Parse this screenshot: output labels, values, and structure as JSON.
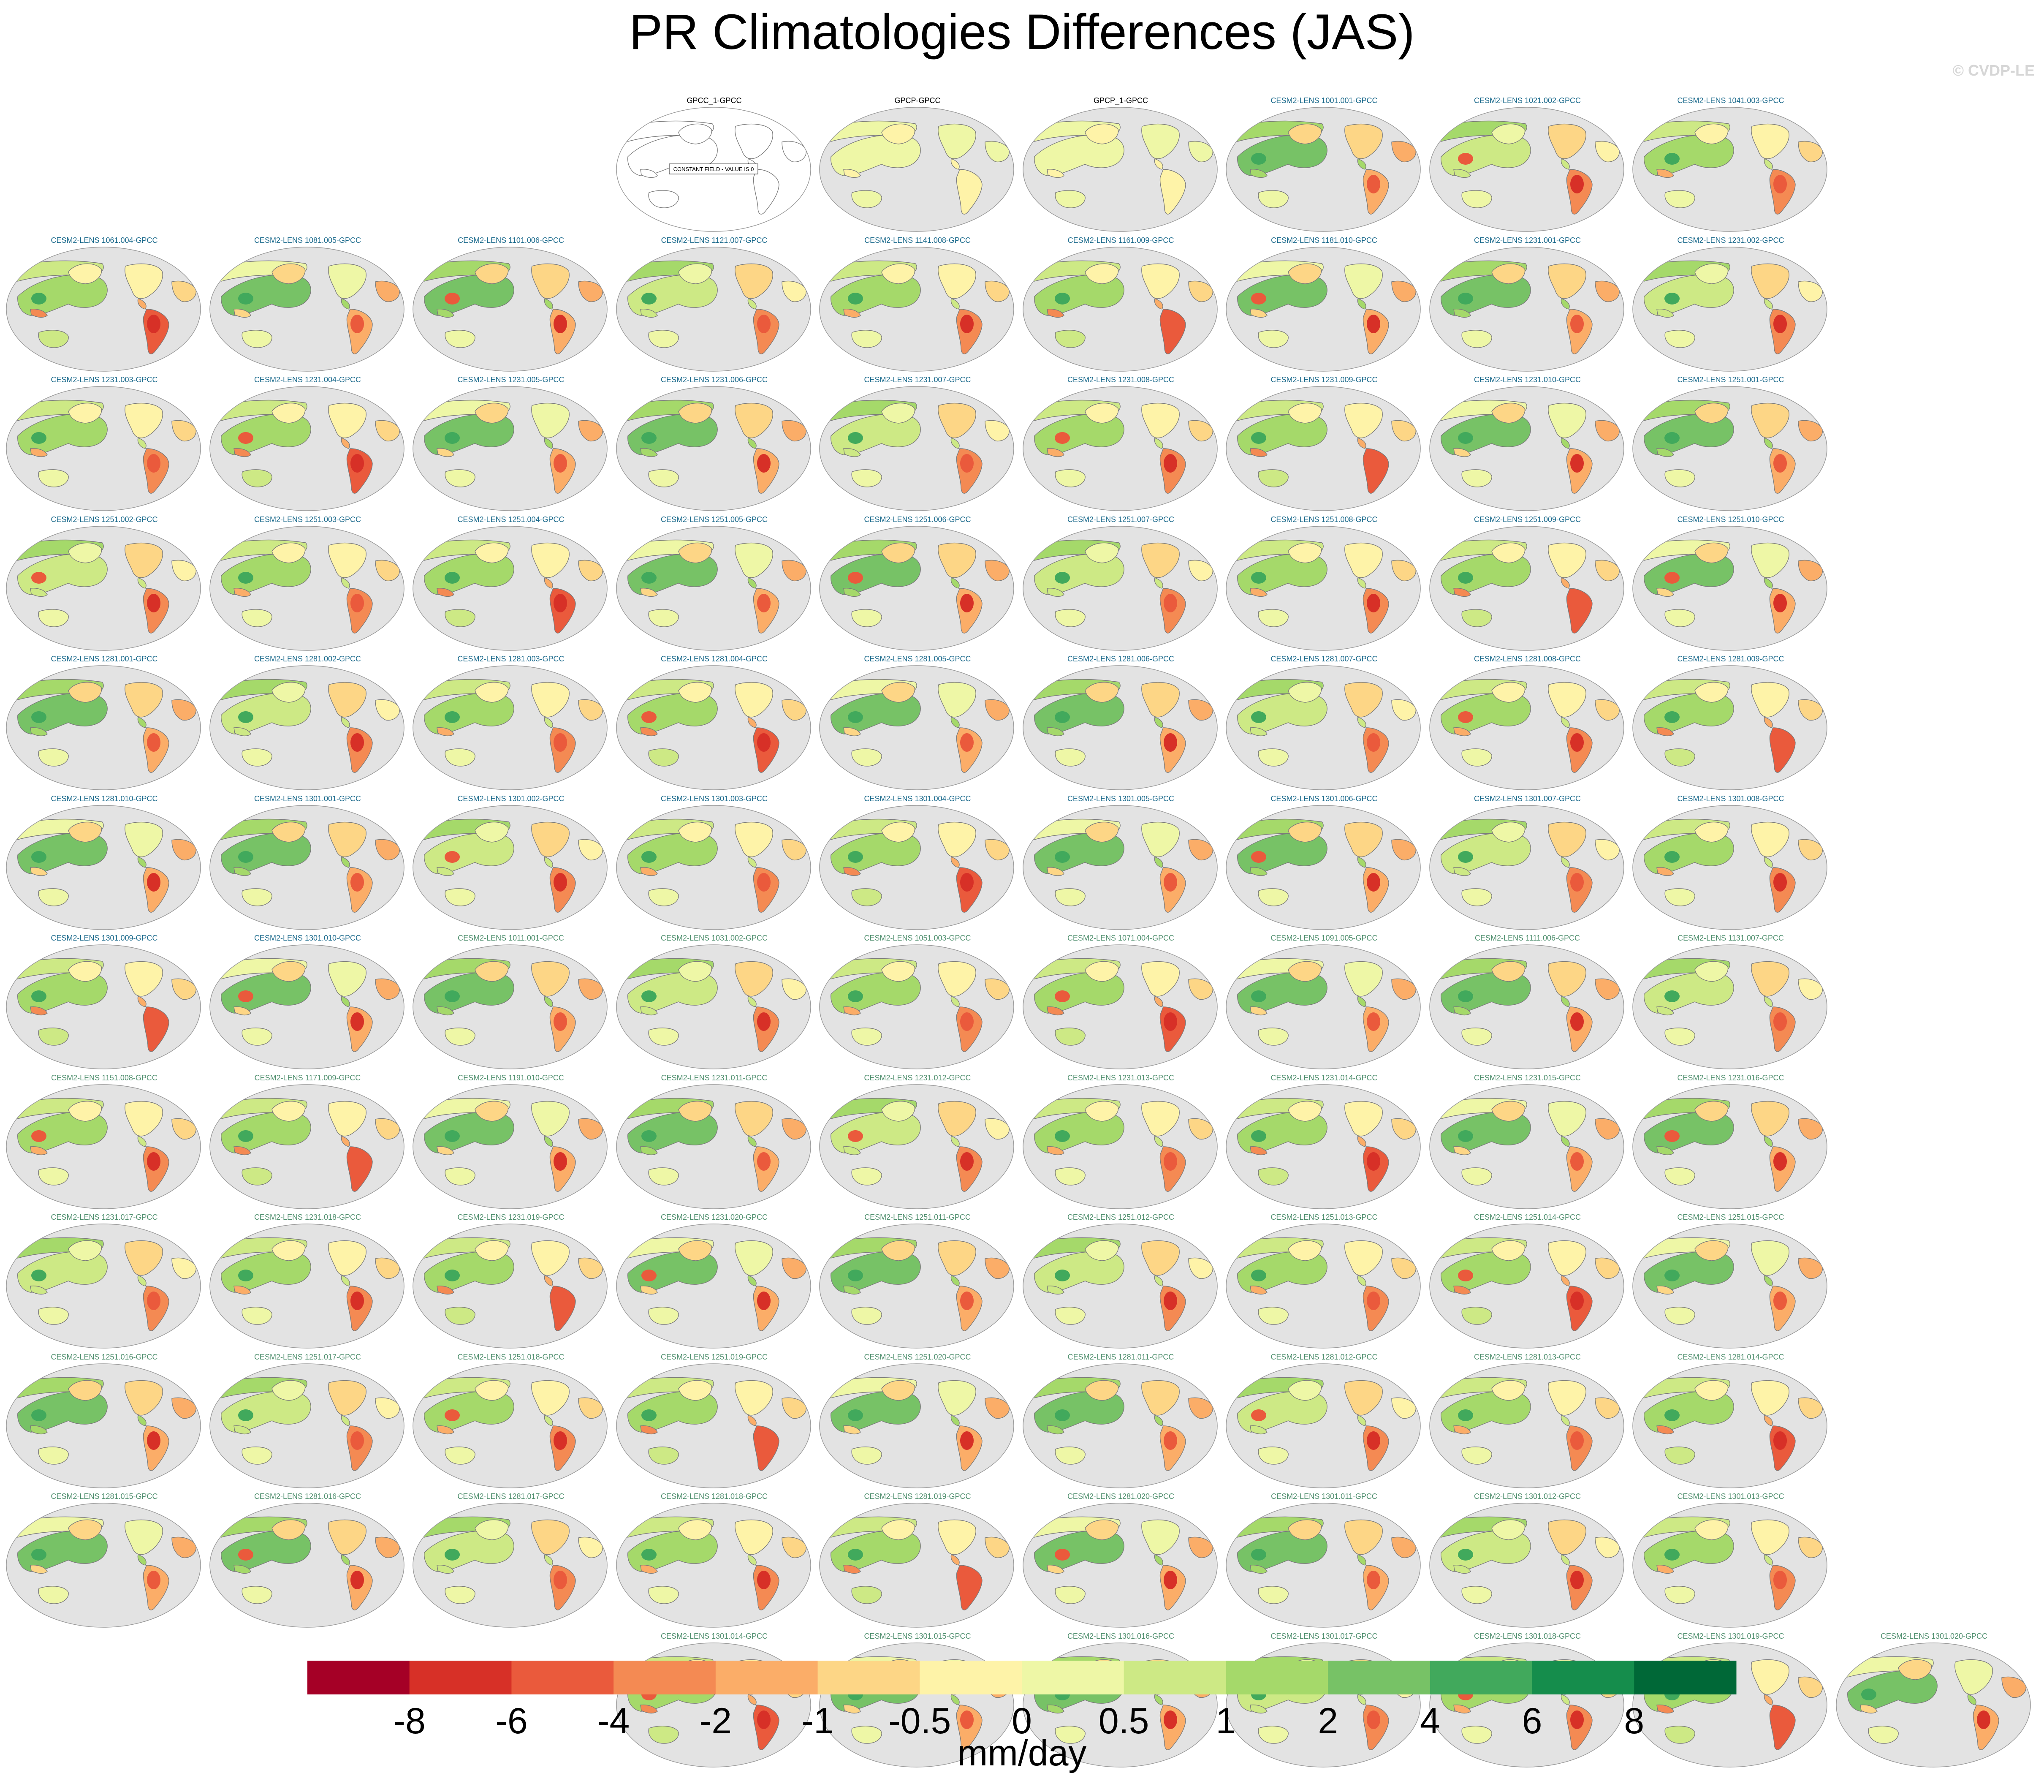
{
  "title": "PR Climatologies Differences (JAS)",
  "credit": "© CVDP-LE",
  "colors": {
    "title_obs": "#000000",
    "title_cesm_a": "#1b6a8c",
    "title_cesm_b": "#4f8f6e",
    "ocean": "#e3e3e3",
    "coast": "#7a7a7a"
  },
  "chart_data": {
    "type": "heatmap",
    "description_units": "mm/day",
    "colorbar": {
      "units": "mm/day",
      "tick_labels": [
        "-8",
        "-6",
        "-4",
        "-2",
        "-1",
        "-0.5",
        "0",
        "0.5",
        "1",
        "2",
        "4",
        "6",
        "8"
      ],
      "levels": [
        -8,
        -6,
        -4,
        -2,
        -1,
        -0.5,
        0,
        0.5,
        1,
        2,
        4,
        6,
        8
      ],
      "colors": [
        "#a50026",
        "#d73027",
        "#ea5a3c",
        "#f48a53",
        "#fbad68",
        "#fdd686",
        "#fef3a8",
        "#eef7a6",
        "#cde985",
        "#a5d96a",
        "#77c266",
        "#41a95c",
        "#158d4c",
        "#006837"
      ]
    },
    "panels": [
      {
        "label": "GPCC_1-GPCC",
        "group": "obs",
        "kind": "constant",
        "annotation": "CONSTANT FIELD - VALUE IS 0"
      },
      {
        "label": "GPCP-GPCC",
        "group": "obs",
        "kind": "obs"
      },
      {
        "label": "GPCP_1-GPCC",
        "group": "obs",
        "kind": "obs"
      },
      {
        "label": "CESM2-LENS 1001.001-GPCC",
        "group": "a"
      },
      {
        "label": "CESM2-LENS 1021.002-GPCC",
        "group": "a"
      },
      {
        "label": "CESM2-LENS 1041.003-GPCC",
        "group": "a"
      },
      {
        "label": "CESM2-LENS 1061.004-GPCC",
        "group": "a"
      },
      {
        "label": "CESM2-LENS 1081.005-GPCC",
        "group": "a"
      },
      {
        "label": "CESM2-LENS 1101.006-GPCC",
        "group": "a"
      },
      {
        "label": "CESM2-LENS 1121.007-GPCC",
        "group": "a"
      },
      {
        "label": "CESM2-LENS 1141.008-GPCC",
        "group": "a"
      },
      {
        "label": "CESM2-LENS 1161.009-GPCC",
        "group": "a"
      },
      {
        "label": "CESM2-LENS 1181.010-GPCC",
        "group": "a"
      },
      {
        "label": "CESM2-LENS 1231.001-GPCC",
        "group": "a"
      },
      {
        "label": "CESM2-LENS 1231.002-GPCC",
        "group": "a"
      },
      {
        "label": "CESM2-LENS 1231.003-GPCC",
        "group": "a"
      },
      {
        "label": "CESM2-LENS 1231.004-GPCC",
        "group": "a"
      },
      {
        "label": "CESM2-LENS 1231.005-GPCC",
        "group": "a"
      },
      {
        "label": "CESM2-LENS 1231.006-GPCC",
        "group": "a"
      },
      {
        "label": "CESM2-LENS 1231.007-GPCC",
        "group": "a"
      },
      {
        "label": "CESM2-LENS 1231.008-GPCC",
        "group": "a"
      },
      {
        "label": "CESM2-LENS 1231.009-GPCC",
        "group": "a"
      },
      {
        "label": "CESM2-LENS 1231.010-GPCC",
        "group": "a"
      },
      {
        "label": "CESM2-LENS 1251.001-GPCC",
        "group": "a"
      },
      {
        "label": "CESM2-LENS 1251.002-GPCC",
        "group": "a"
      },
      {
        "label": "CESM2-LENS 1251.003-GPCC",
        "group": "a"
      },
      {
        "label": "CESM2-LENS 1251.004-GPCC",
        "group": "a"
      },
      {
        "label": "CESM2-LENS 1251.005-GPCC",
        "group": "a"
      },
      {
        "label": "CESM2-LENS 1251.006-GPCC",
        "group": "a"
      },
      {
        "label": "CESM2-LENS 1251.007-GPCC",
        "group": "a"
      },
      {
        "label": "CESM2-LENS 1251.008-GPCC",
        "group": "a"
      },
      {
        "label": "CESM2-LENS 1251.009-GPCC",
        "group": "a"
      },
      {
        "label": "CESM2-LENS 1251.010-GPCC",
        "group": "a"
      },
      {
        "label": "CESM2-LENS 1281.001-GPCC",
        "group": "a"
      },
      {
        "label": "CESM2-LENS 1281.002-GPCC",
        "group": "a"
      },
      {
        "label": "CESM2-LENS 1281.003-GPCC",
        "group": "a"
      },
      {
        "label": "CESM2-LENS 1281.004-GPCC",
        "group": "a"
      },
      {
        "label": "CESM2-LENS 1281.005-GPCC",
        "group": "a"
      },
      {
        "label": "CESM2-LENS 1281.006-GPCC",
        "group": "a"
      },
      {
        "label": "CESM2-LENS 1281.007-GPCC",
        "group": "a"
      },
      {
        "label": "CESM2-LENS 1281.008-GPCC",
        "group": "a"
      },
      {
        "label": "CESM2-LENS 1281.009-GPCC",
        "group": "a"
      },
      {
        "label": "CESM2-LENS 1281.010-GPCC",
        "group": "a"
      },
      {
        "label": "CESM2-LENS 1301.001-GPCC",
        "group": "a"
      },
      {
        "label": "CESM2-LENS 1301.002-GPCC",
        "group": "a"
      },
      {
        "label": "CESM2-LENS 1301.003-GPCC",
        "group": "a"
      },
      {
        "label": "CESM2-LENS 1301.004-GPCC",
        "group": "a"
      },
      {
        "label": "CESM2-LENS 1301.005-GPCC",
        "group": "a"
      },
      {
        "label": "CESM2-LENS 1301.006-GPCC",
        "group": "a"
      },
      {
        "label": "CESM2-LENS 1301.007-GPCC",
        "group": "a"
      },
      {
        "label": "CESM2-LENS 1301.008-GPCC",
        "group": "a"
      },
      {
        "label": "CESM2-LENS 1301.009-GPCC",
        "group": "a"
      },
      {
        "label": "CESM2-LENS 1301.010-GPCC",
        "group": "a"
      },
      {
        "label": "CESM2-LENS 1011.001-GPCC",
        "group": "b"
      },
      {
        "label": "CESM2-LENS 1031.002-GPCC",
        "group": "b"
      },
      {
        "label": "CESM2-LENS 1051.003-GPCC",
        "group": "b"
      },
      {
        "label": "CESM2-LENS 1071.004-GPCC",
        "group": "b"
      },
      {
        "label": "CESM2-LENS 1091.005-GPCC",
        "group": "b"
      },
      {
        "label": "CESM2-LENS 1111.006-GPCC",
        "group": "b"
      },
      {
        "label": "CESM2-LENS 1131.007-GPCC",
        "group": "b"
      },
      {
        "label": "CESM2-LENS 1151.008-GPCC",
        "group": "b"
      },
      {
        "label": "CESM2-LENS 1171.009-GPCC",
        "group": "b"
      },
      {
        "label": "CESM2-LENS 1191.010-GPCC",
        "group": "b"
      },
      {
        "label": "CESM2-LENS 1231.011-GPCC",
        "group": "b"
      },
      {
        "label": "CESM2-LENS 1231.012-GPCC",
        "group": "b"
      },
      {
        "label": "CESM2-LENS 1231.013-GPCC",
        "group": "b"
      },
      {
        "label": "CESM2-LENS 1231.014-GPCC",
        "group": "b"
      },
      {
        "label": "CESM2-LENS 1231.015-GPCC",
        "group": "b"
      },
      {
        "label": "CESM2-LENS 1231.016-GPCC",
        "group": "b"
      },
      {
        "label": "CESM2-LENS 1231.017-GPCC",
        "group": "b"
      },
      {
        "label": "CESM2-LENS 1231.018-GPCC",
        "group": "b"
      },
      {
        "label": "CESM2-LENS 1231.019-GPCC",
        "group": "b"
      },
      {
        "label": "CESM2-LENS 1231.020-GPCC",
        "group": "b"
      },
      {
        "label": "CESM2-LENS 1251.011-GPCC",
        "group": "b"
      },
      {
        "label": "CESM2-LENS 1251.012-GPCC",
        "group": "b"
      },
      {
        "label": "CESM2-LENS 1251.013-GPCC",
        "group": "b"
      },
      {
        "label": "CESM2-LENS 1251.014-GPCC",
        "group": "b"
      },
      {
        "label": "CESM2-LENS 1251.015-GPCC",
        "group": "b"
      },
      {
        "label": "CESM2-LENS 1251.016-GPCC",
        "group": "b"
      },
      {
        "label": "CESM2-LENS 1251.017-GPCC",
        "group": "b"
      },
      {
        "label": "CESM2-LENS 1251.018-GPCC",
        "group": "b"
      },
      {
        "label": "CESM2-LENS 1251.019-GPCC",
        "group": "b"
      },
      {
        "label": "CESM2-LENS 1251.020-GPCC",
        "group": "b"
      },
      {
        "label": "CESM2-LENS 1281.011-GPCC",
        "group": "b"
      },
      {
        "label": "CESM2-LENS 1281.012-GPCC",
        "group": "b"
      },
      {
        "label": "CESM2-LENS 1281.013-GPCC",
        "group": "b"
      },
      {
        "label": "CESM2-LENS 1281.014-GPCC",
        "group": "b"
      },
      {
        "label": "CESM2-LENS 1281.015-GPCC",
        "group": "b"
      },
      {
        "label": "CESM2-LENS 1281.016-GPCC",
        "group": "b"
      },
      {
        "label": "CESM2-LENS 1281.017-GPCC",
        "group": "b"
      },
      {
        "label": "CESM2-LENS 1281.018-GPCC",
        "group": "b"
      },
      {
        "label": "CESM2-LENS 1281.019-GPCC",
        "group": "b"
      },
      {
        "label": "CESM2-LENS 1281.020-GPCC",
        "group": "b"
      },
      {
        "label": "CESM2-LENS 1301.011-GPCC",
        "group": "b"
      },
      {
        "label": "CESM2-LENS 1301.012-GPCC",
        "group": "b"
      },
      {
        "label": "CESM2-LENS 1301.013-GPCC",
        "group": "b"
      },
      {
        "label": "CESM2-LENS 1301.014-GPCC",
        "group": "b"
      },
      {
        "label": "CESM2-LENS 1301.015-GPCC",
        "group": "b"
      },
      {
        "label": "CESM2-LENS 1301.016-GPCC",
        "group": "b"
      },
      {
        "label": "CESM2-LENS 1301.017-GPCC",
        "group": "b"
      },
      {
        "label": "CESM2-LENS 1301.018-GPCC",
        "group": "b"
      },
      {
        "label": "CESM2-LENS 1301.019-GPCC",
        "group": "b"
      },
      {
        "label": "CESM2-LENS 1301.020-GPCC",
        "group": "b"
      }
    ]
  }
}
